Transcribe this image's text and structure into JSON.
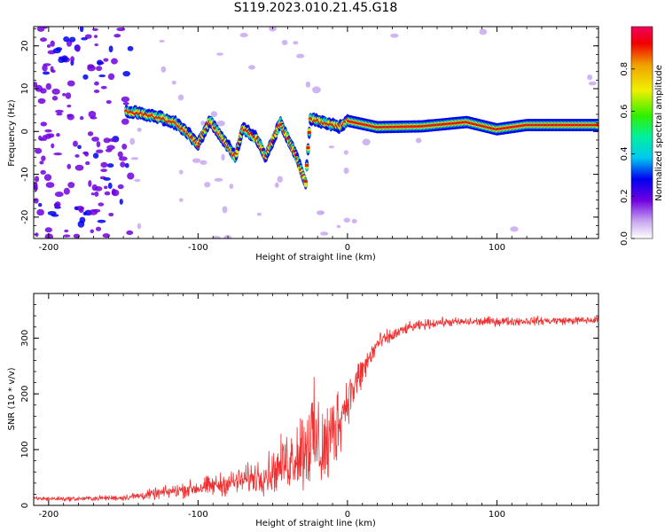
{
  "title": "S119.2023.010.21.45.G18",
  "chart_data": [
    {
      "type": "heatmap",
      "xlabel": "Height of straight line (km)",
      "ylabel": "Frequency (Hz)",
      "xlim": [
        -210,
        168
      ],
      "ylim": [
        -25,
        24.5
      ],
      "xticks": [
        -200,
        -100,
        0,
        100
      ],
      "yticks": [
        -20,
        -10,
        0,
        10,
        20
      ],
      "colorbar": {
        "label": "Normalized spectral amplitude",
        "range": [
          0,
          1
        ],
        "ticks": [
          0.0,
          0.2,
          0.4,
          0.6,
          0.8
        ]
      },
      "ridge": [
        {
          "x": -145,
          "y": 4.5
        },
        {
          "x": -135,
          "y": 4
        },
        {
          "x": -125,
          "y": 3.2
        },
        {
          "x": -115,
          "y": 2
        },
        {
          "x": -108,
          "y": 0
        },
        {
          "x": -100,
          "y": -3
        },
        {
          "x": -92,
          "y": 2.5
        },
        {
          "x": -85,
          "y": -1
        },
        {
          "x": -75,
          "y": -6
        },
        {
          "x": -70,
          "y": 1
        },
        {
          "x": -60,
          "y": -2
        },
        {
          "x": -55,
          "y": -6
        },
        {
          "x": -45,
          "y": 2
        },
        {
          "x": -35,
          "y": -5
        },
        {
          "x": -28,
          "y": -12
        },
        {
          "x": -25,
          "y": 3
        },
        {
          "x": -15,
          "y": 2
        },
        {
          "x": -5,
          "y": 1.2
        },
        {
          "x": 0,
          "y": 2.5
        },
        {
          "x": 20,
          "y": 1
        },
        {
          "x": 50,
          "y": 1.2
        },
        {
          "x": 80,
          "y": 2.2
        },
        {
          "x": 100,
          "y": 0.5
        },
        {
          "x": 120,
          "y": 1.5
        },
        {
          "x": 168,
          "y": 1.5
        }
      ]
    },
    {
      "type": "line",
      "xlabel": "Height of straight line (km)",
      "ylabel": "SNR (10 * v/v)",
      "xlim": [
        -210,
        168
      ],
      "ylim": [
        0,
        380
      ],
      "xticks": [
        -200,
        -100,
        0,
        100
      ],
      "yticks": [
        0,
        100,
        200,
        300
      ],
      "color": "#f03030",
      "envelope": [
        {
          "x": -210,
          "mean": 12,
          "noise": 6
        },
        {
          "x": -180,
          "mean": 12,
          "noise": 6
        },
        {
          "x": -150,
          "mean": 14,
          "noise": 8
        },
        {
          "x": -130,
          "mean": 20,
          "noise": 14
        },
        {
          "x": -110,
          "mean": 28,
          "noise": 20
        },
        {
          "x": -90,
          "mean": 35,
          "noise": 28
        },
        {
          "x": -70,
          "mean": 45,
          "noise": 35
        },
        {
          "x": -50,
          "mean": 60,
          "noise": 55
        },
        {
          "x": -35,
          "mean": 90,
          "noise": 90
        },
        {
          "x": -25,
          "mean": 120,
          "noise": 140
        },
        {
          "x": -15,
          "mean": 100,
          "noise": 130
        },
        {
          "x": -8,
          "mean": 140,
          "noise": 110
        },
        {
          "x": 0,
          "mean": 190,
          "noise": 60
        },
        {
          "x": 10,
          "mean": 240,
          "noise": 50
        },
        {
          "x": 20,
          "mean": 290,
          "noise": 25
        },
        {
          "x": 40,
          "mean": 318,
          "noise": 14
        },
        {
          "x": 60,
          "mean": 328,
          "noise": 12
        },
        {
          "x": 100,
          "mean": 330,
          "noise": 12
        },
        {
          "x": 168,
          "mean": 332,
          "noise": 10
        }
      ]
    }
  ]
}
